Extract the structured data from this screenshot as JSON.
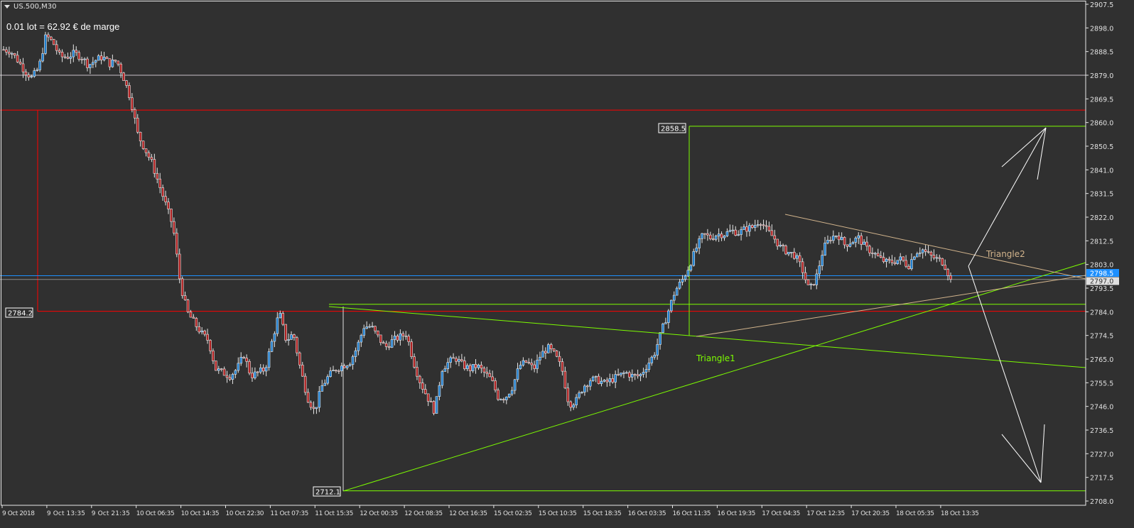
{
  "header": {
    "symbol": "US.500,M30",
    "margin_info": "0.01 lot = 62.92 € de marge"
  },
  "colors": {
    "background": "#303030",
    "bull": "#1e7fd0",
    "bear": "#b02020",
    "outline": "#e8e8e8",
    "green": "#7cfc00",
    "red": "#ff0000",
    "blue": "#1e90ff",
    "tan": "#d2b48c",
    "grid_axis": "#ffffff"
  },
  "chart_data": {
    "type": "candlestick",
    "symbol": "US.500",
    "timeframe": "M30",
    "ylim": [
      2708.0,
      2907.5
    ],
    "y_ticks": [
      "2907.5",
      "2898.0",
      "2888.5",
      "2879.0",
      "2869.5",
      "2860.0",
      "2850.5",
      "2841.0",
      "2831.5",
      "2822.0",
      "2812.5",
      "2803.0",
      "2793.5",
      "2784.0",
      "2774.5",
      "2765.0",
      "2755.5",
      "2746.0",
      "2736.5",
      "2727.0",
      "2717.5",
      "2708.0"
    ],
    "x_ticks": [
      "9 Oct 2018",
      "9 Oct 13:35",
      "9 Oct 21:35",
      "10 Oct 06:35",
      "10 Oct 14:35",
      "10 Oct 22:30",
      "11 Oct 07:35",
      "11 Oct 15:35",
      "12 Oct 00:35",
      "12 Oct 08:35",
      "12 Oct 16:35",
      "15 Oct 02:35",
      "15 Oct 10:35",
      "15 Oct 18:35",
      "16 Oct 03:35",
      "16 Oct 11:35",
      "16 Oct 19:35",
      "17 Oct 04:35",
      "17 Oct 12:35",
      "17 Oct 20:35",
      "18 Oct 05:35",
      "18 Oct 13:35"
    ],
    "closes_approx": [
      2889.3,
      2888.7,
      2885.0,
      2880.7,
      2877.9,
      2882.1,
      2895.0,
      2892.1,
      2886.4,
      2886.4,
      2887.8,
      2886.4,
      2883.0,
      2885.0,
      2886.4,
      2883.6,
      2885.0,
      2877.9,
      2869.3,
      2855.1,
      2849.4,
      2843.7,
      2835.1,
      2826.6,
      2818.0,
      2795.2,
      2783.8,
      2779.5,
      2775.3,
      2772.4,
      2761.0,
      2759.6,
      2758.2,
      2761.0,
      2766.7,
      2758.2,
      2759.6,
      2761.0,
      2772.4,
      2783.8,
      2772.4,
      2775.3,
      2761.0,
      2749.6,
      2743.9,
      2753.9,
      2758.2,
      2761.0,
      2762.4,
      2763.9,
      2769.6,
      2778.1,
      2778.1,
      2773.8,
      2769.6,
      2772.4,
      2773.8,
      2775.3,
      2763.9,
      2755.3,
      2749.6,
      2743.9,
      2761.0,
      2763.9,
      2765.3,
      2762.4,
      2761.0,
      2762.4,
      2759.6,
      2756.7,
      2749.6,
      2749.6,
      2753.9,
      2762.4,
      2763.9,
      2761.0,
      2766.7,
      2769.6,
      2766.7,
      2761.0,
      2746.8,
      2748.2,
      2753.9,
      2756.7,
      2756.7,
      2755.3,
      2756.7,
      2758.2,
      2759.6,
      2758.2,
      2758.2,
      2762.4,
      2766.7,
      2775.3,
      2783.8,
      2792.4,
      2796.6,
      2802.3,
      2809.5,
      2815.2,
      2813.7,
      2815.2,
      2815.2,
      2816.6,
      2815.7,
      2817.4,
      2818.0,
      2820.9,
      2816.6,
      2813.7,
      2809.5,
      2808.0,
      2806.6,
      2800.9,
      2792.4,
      2798.1,
      2809.5,
      2813.7,
      2815.2,
      2810.9,
      2812.3,
      2813.7,
      2809.5,
      2808.0,
      2805.2,
      2803.8,
      2804.3,
      2805.2,
      2802.3,
      2808.0,
      2809.0,
      2806.6,
      2805.2,
      2803.8,
      2797.0
    ],
    "bid_price": "2797.0",
    "ask_price": "2798.5",
    "price_labels": {
      "red_level": "2784.2",
      "green_high": "2858.5",
      "green_low": "2712.1"
    },
    "annotations": {
      "triangle1": "Triangle1",
      "triangle2": "Triangle2"
    },
    "levels": {
      "white": 2879.0,
      "red_top": 2865.0,
      "red_bottom": 2784.2,
      "green_top": 2858.5,
      "green_mid": 2787.0,
      "green_low": 2712.1
    }
  }
}
